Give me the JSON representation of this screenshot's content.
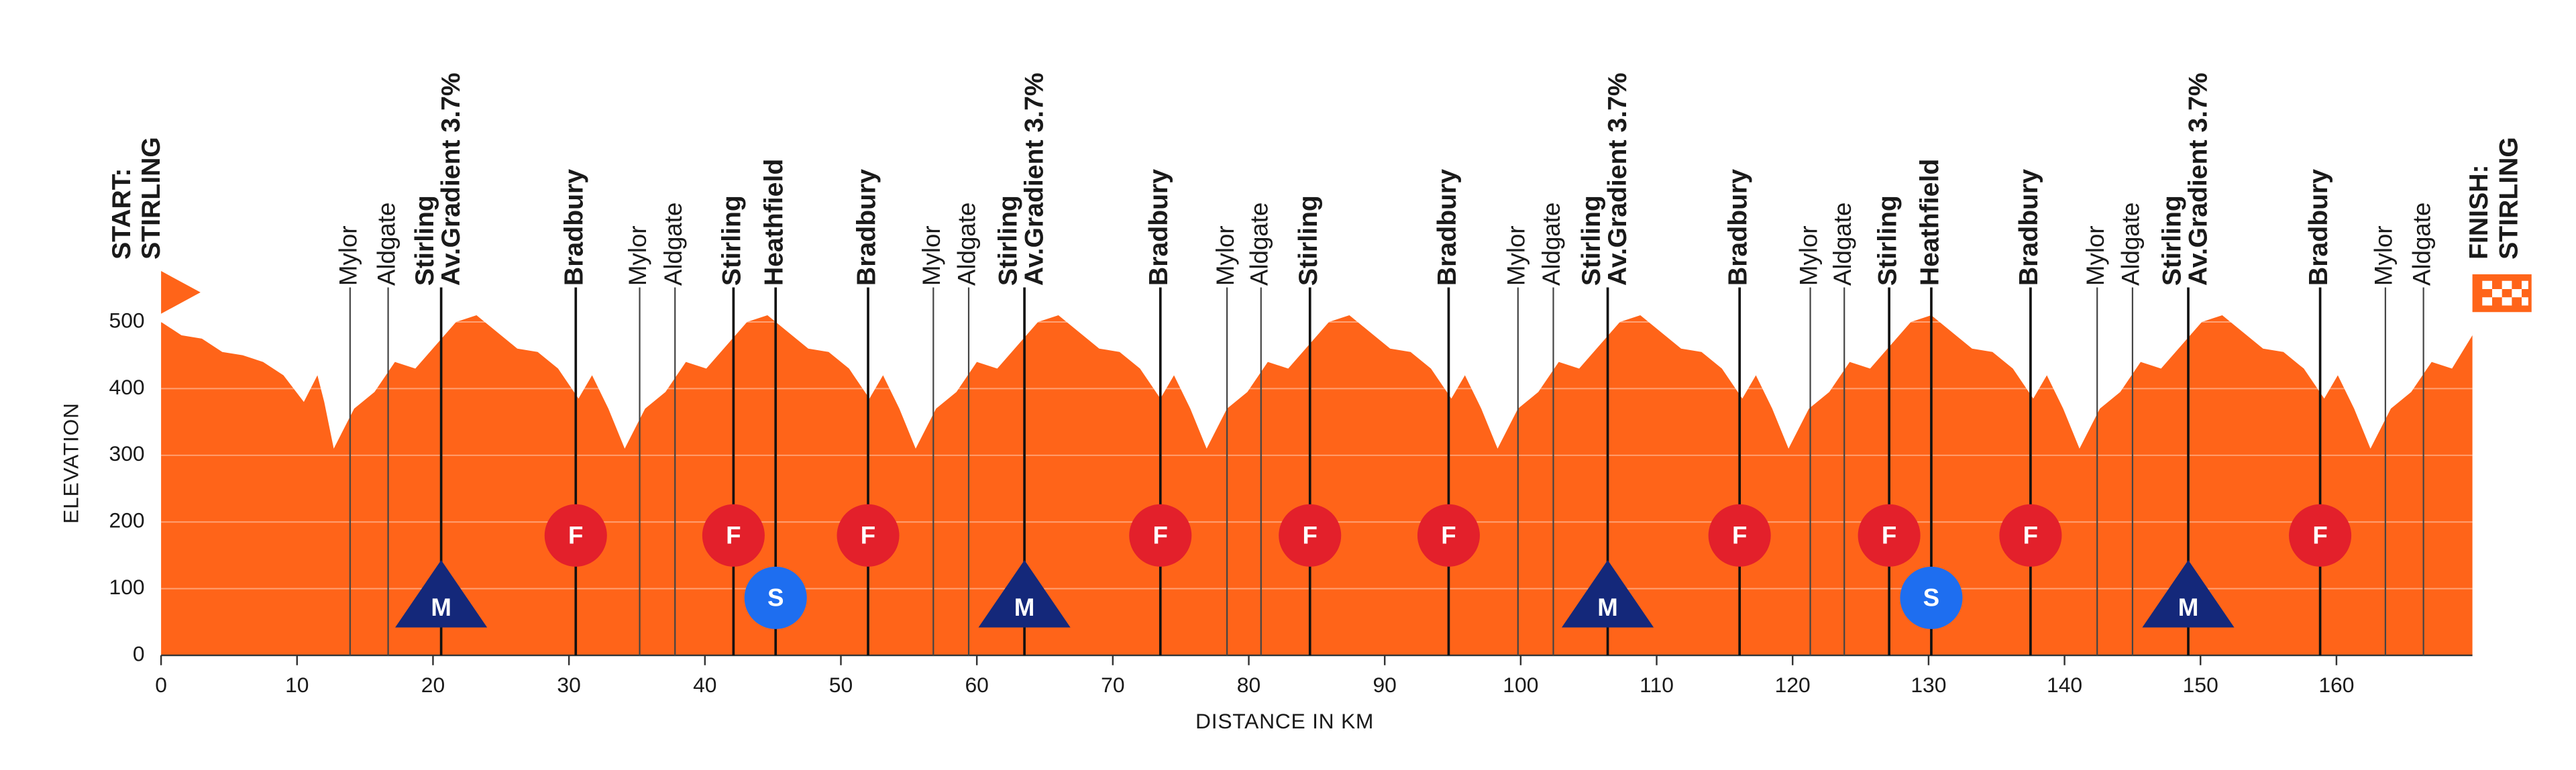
{
  "chart_data": {
    "type": "area",
    "y_label": "ELEVATION",
    "x_label": "DISTANCE IN KM",
    "color": "#ff6419",
    "grid": true,
    "xlim": [
      0,
      170
    ],
    "ylim": [
      0,
      550
    ],
    "xticks": [
      0,
      10,
      20,
      30,
      40,
      50,
      60,
      70,
      80,
      90,
      100,
      110,
      120,
      130,
      140,
      150,
      160
    ],
    "yticks": [
      0,
      100,
      200,
      300,
      400,
      500
    ],
    "x": [
      0,
      1.5,
      3,
      4.5,
      6,
      7.5,
      9,
      10.5,
      11.5,
      12,
      12.7,
      14.2,
      15.7,
      17.2,
      18.7,
      20.2,
      21.7,
      23.2,
      24.7,
      26.2,
      27.7,
      29.2,
      30.7,
      31.7,
      32.9,
      34.1,
      35.6,
      37.1,
      38.6,
      40.1,
      41.6,
      43.1,
      44.6,
      46.1,
      47.6,
      49.1,
      50.6,
      52.1,
      53.1,
      54.3,
      55.5,
      57,
      58.5,
      60,
      61.5,
      63,
      64.5,
      66,
      67.5,
      69,
      70.5,
      72,
      73.5,
      74.5,
      75.7,
      76.9,
      78.4,
      79.9,
      81.4,
      82.9,
      84.4,
      85.9,
      87.4,
      88.9,
      90.4,
      91.9,
      93.4,
      94.9,
      95.9,
      97.1,
      98.3,
      99.8,
      101.3,
      102.8,
      104.3,
      105.8,
      107.3,
      108.8,
      110.3,
      111.8,
      113.3,
      114.8,
      116.3,
      117.3,
      118.5,
      119.7,
      121.2,
      122.7,
      124.2,
      125.7,
      127.2,
      128.7,
      130.2,
      131.7,
      133.2,
      134.7,
      136.2,
      137.7,
      138.7,
      139.9,
      141.1,
      142.6,
      144.1,
      145.6,
      147.1,
      148.6,
      150.1,
      151.6,
      153.1,
      154.6,
      156.1,
      157.6,
      159.1,
      160.1,
      161.3,
      162.5,
      164,
      165.5,
      167,
      168.5,
      170
    ],
    "values": [
      500,
      480,
      475,
      455,
      450,
      440,
      420,
      380,
      420,
      380,
      310,
      370,
      395,
      440,
      430,
      465,
      500,
      510,
      485,
      460,
      455,
      430,
      385,
      420,
      370,
      310,
      370,
      395,
      440,
      430,
      465,
      500,
      510,
      485,
      460,
      455,
      430,
      385,
      420,
      370,
      310,
      370,
      395,
      440,
      430,
      465,
      500,
      510,
      485,
      460,
      455,
      430,
      385,
      420,
      370,
      310,
      370,
      395,
      440,
      430,
      465,
      500,
      510,
      485,
      460,
      455,
      430,
      385,
      420,
      370,
      310,
      370,
      395,
      440,
      430,
      465,
      500,
      510,
      485,
      460,
      455,
      430,
      385,
      420,
      370,
      310,
      370,
      395,
      440,
      430,
      465,
      500,
      510,
      485,
      460,
      455,
      430,
      385,
      420,
      370,
      310,
      370,
      395,
      440,
      430,
      465,
      500,
      510,
      485,
      460,
      455,
      430,
      385,
      420,
      370,
      310,
      370,
      395,
      440,
      430,
      480
    ],
    "start": {
      "lines": [
        "START:",
        "STIRLING"
      ]
    },
    "finish": {
      "lines": [
        "FINISH:",
        "STIRLING"
      ]
    },
    "icon_colors": {
      "F": "#e3202b",
      "S": "#1e6ef0",
      "M": "#14287a"
    },
    "markers": [
      {
        "km": 13.9,
        "lines": [
          "Mylor"
        ],
        "weight": "normal"
      },
      {
        "km": 16.7,
        "lines": [
          "Aldgate"
        ],
        "weight": "normal"
      },
      {
        "km": 20.6,
        "lines": [
          "Stirling",
          "Av.Gradient 3.7%"
        ],
        "weight": "bold",
        "icon": "M"
      },
      {
        "km": 30.5,
        "lines": [
          "Bradbury"
        ],
        "weight": "bold",
        "icon": "F"
      },
      {
        "km": 35.2,
        "lines": [
          "Mylor"
        ],
        "weight": "normal"
      },
      {
        "km": 37.8,
        "lines": [
          "Aldgate"
        ],
        "weight": "normal"
      },
      {
        "km": 42.1,
        "lines": [
          "Stirling"
        ],
        "weight": "bold",
        "icon": "F"
      },
      {
        "km": 45.2,
        "lines": [
          "Heathfield"
        ],
        "weight": "bold",
        "icon": "S"
      },
      {
        "km": 52,
        "lines": [
          "Bradbury"
        ],
        "weight": "bold",
        "icon": "F"
      },
      {
        "km": 56.8,
        "lines": [
          "Mylor"
        ],
        "weight": "normal"
      },
      {
        "km": 59.4,
        "lines": [
          "Aldgate"
        ],
        "weight": "normal"
      },
      {
        "km": 63.5,
        "lines": [
          "Stirling",
          "Av.Gradient 3.7%"
        ],
        "weight": "bold",
        "icon": "M"
      },
      {
        "km": 73.5,
        "lines": [
          "Bradbury"
        ],
        "weight": "bold",
        "icon": "F"
      },
      {
        "km": 78.4,
        "lines": [
          "Mylor"
        ],
        "weight": "normal"
      },
      {
        "km": 80.9,
        "lines": [
          "Aldgate"
        ],
        "weight": "normal"
      },
      {
        "km": 84.5,
        "lines": [
          "Stirling"
        ],
        "weight": "bold",
        "icon": "F"
      },
      {
        "km": 94.7,
        "lines": [
          "Bradbury"
        ],
        "weight": "bold",
        "icon": "F"
      },
      {
        "km": 99.8,
        "lines": [
          "Mylor"
        ],
        "weight": "normal"
      },
      {
        "km": 102.4,
        "lines": [
          "Aldgate"
        ],
        "weight": "normal"
      },
      {
        "km": 106.4,
        "lines": [
          "Stirling",
          "Av.Gradient 3.7%"
        ],
        "weight": "bold",
        "icon": "M"
      },
      {
        "km": 116.1,
        "lines": [
          "Bradbury"
        ],
        "weight": "bold",
        "icon": "F"
      },
      {
        "km": 121.3,
        "lines": [
          "Mylor"
        ],
        "weight": "normal"
      },
      {
        "km": 123.8,
        "lines": [
          "Aldgate"
        ],
        "weight": "normal"
      },
      {
        "km": 127.1,
        "lines": [
          "Stirling"
        ],
        "weight": "bold",
        "icon": "F"
      },
      {
        "km": 130.2,
        "lines": [
          "Heathfield"
        ],
        "weight": "bold",
        "icon": "S"
      },
      {
        "km": 137.5,
        "lines": [
          "Bradbury"
        ],
        "weight": "bold",
        "icon": "F"
      },
      {
        "km": 142.4,
        "lines": [
          "Mylor"
        ],
        "weight": "normal"
      },
      {
        "km": 145,
        "lines": [
          "Aldgate"
        ],
        "weight": "normal"
      },
      {
        "km": 149.1,
        "lines": [
          "Stirling",
          "Av.Gradient 3.7%"
        ],
        "weight": "bold",
        "icon": "M"
      },
      {
        "km": 158.8,
        "lines": [
          "Bradbury"
        ],
        "weight": "bold",
        "icon": "F"
      },
      {
        "km": 163.6,
        "lines": [
          "Mylor"
        ],
        "weight": "normal"
      },
      {
        "km": 166.4,
        "lines": [
          "Aldgate"
        ],
        "weight": "normal"
      }
    ]
  }
}
